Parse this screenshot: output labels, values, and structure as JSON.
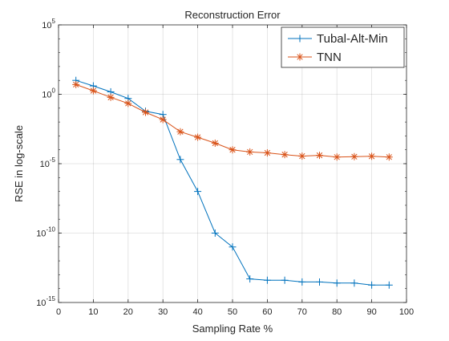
{
  "chart_data": {
    "type": "line",
    "title": "Reconstruction Error",
    "xlabel": "Sampling Rate %",
    "ylabel": "RSE in log-scale",
    "xlim": [
      0,
      100
    ],
    "ylim": [
      1e-15,
      100000.0
    ],
    "y_scale": "log",
    "grid": true,
    "legend_position": "top-right",
    "x_ticks": [
      0,
      10,
      20,
      30,
      40,
      50,
      60,
      70,
      80,
      90,
      100
    ],
    "x_tick_labels": [
      "0",
      "10",
      "20",
      "30",
      "40",
      "50",
      "60",
      "70",
      "80",
      "90",
      "100"
    ],
    "y_ticks": [
      {
        "value": 1e-15,
        "base": "10",
        "exp": "-15"
      },
      {
        "value": 1e-10,
        "base": "10",
        "exp": "-10"
      },
      {
        "value": 1e-05,
        "base": "10",
        "exp": "-5"
      },
      {
        "value": 1,
        "base": "10",
        "exp": "0"
      },
      {
        "value": 100000.0,
        "base": "10",
        "exp": "5"
      }
    ],
    "x": [
      5,
      10,
      15,
      20,
      25,
      30,
      35,
      40,
      45,
      50,
      55,
      60,
      65,
      70,
      75,
      80,
      85,
      90,
      95
    ],
    "series": [
      {
        "name": "Tubal-Alt-Min",
        "color": "#0072bd",
        "marker": "plus",
        "values": [
          10,
          4,
          1.5,
          0.5,
          0.06,
          0.035,
          2e-05,
          1e-07,
          1e-10,
          1e-11,
          5e-14,
          4e-14,
          4e-14,
          3e-14,
          3e-14,
          2.5e-14,
          2.5e-14,
          1.8e-14,
          1.8e-14
        ]
      },
      {
        "name": "TNN",
        "color": "#d95319",
        "marker": "asterisk",
        "values": [
          5,
          1.8,
          0.6,
          0.22,
          0.05,
          0.015,
          0.002,
          0.0008,
          0.0003,
          0.0001,
          7e-05,
          6e-05,
          4.5e-05,
          3.5e-05,
          4e-05,
          3e-05,
          3.2e-05,
          3.4e-05,
          3e-05
        ]
      }
    ]
  }
}
